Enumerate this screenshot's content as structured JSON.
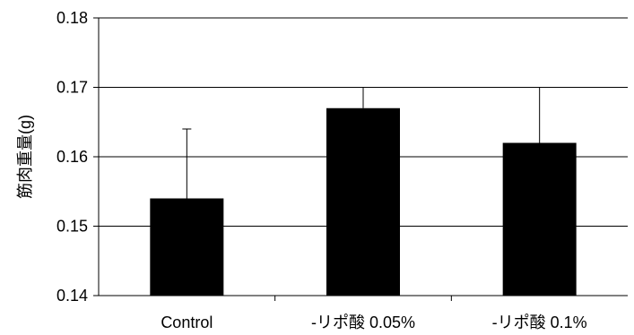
{
  "chart_data": {
    "type": "bar",
    "title": "",
    "xlabel": "",
    "ylabel": "筋肉重量(g)",
    "ylim": [
      0.14,
      0.18
    ],
    "yticks": [
      "0.18",
      "0.17",
      "0.16",
      "0.15",
      "0.14"
    ],
    "ytick_values": [
      0.18,
      0.17,
      0.16,
      0.15,
      0.14
    ],
    "categories": [
      "Control",
      "-リポ酸 0.05%",
      "-リポ酸 0.1%"
    ],
    "values": [
      0.154,
      0.167,
      0.162
    ],
    "error_upper": [
      0.164,
      0.17,
      0.17
    ],
    "bar_color": "#000000",
    "grid": true
  }
}
